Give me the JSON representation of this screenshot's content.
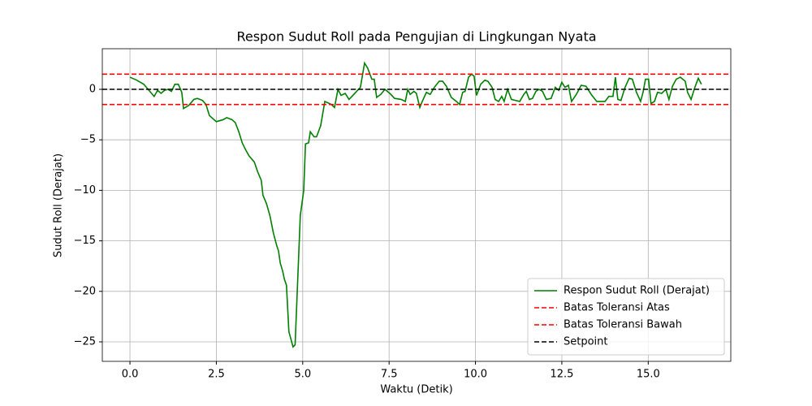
{
  "chart_data": {
    "type": "line",
    "title": "Respon Sudut Roll pada Pengujian di Lingkungan Nyata",
    "x_label": "Waktu (Detik)",
    "y_label": "Sudut Roll (Derajat)",
    "xlim": [
      -0.8,
      17.39
    ],
    "ylim": [
      -26.93,
      4.02
    ],
    "xticks": [
      {
        "value": 0,
        "label": "0.0"
      },
      {
        "value": 2.5,
        "label": "2.5"
      },
      {
        "value": 5,
        "label": "5.0"
      },
      {
        "value": 7.5,
        "label": "7.5"
      },
      {
        "value": 10,
        "label": "10.0"
      },
      {
        "value": 12.5,
        "label": "12.5"
      },
      {
        "value": 15,
        "label": "15.0"
      }
    ],
    "yticks": [
      {
        "value": -25,
        "label": "−25"
      },
      {
        "value": -20,
        "label": "−20"
      },
      {
        "value": -15,
        "label": "−15"
      },
      {
        "value": -10,
        "label": "−10"
      },
      {
        "value": -5,
        "label": "−5"
      },
      0
    ],
    "grid": true,
    "legend": "lower right",
    "series": [
      {
        "name": "Respon Sudut Roll (Derajat)",
        "color": "#008000",
        "x": [
          0,
          0.2,
          0.4,
          0.6,
          0.7,
          0.8,
          0.9,
          1.0,
          1.1,
          1.2,
          1.3,
          1.4,
          1.5,
          1.55,
          1.7,
          1.85,
          1.95,
          2.1,
          2.2,
          2.3,
          2.5,
          2.7,
          2.8,
          2.95,
          3.05,
          3.15,
          3.25,
          3.35,
          3.45,
          3.6,
          3.7,
          3.8,
          3.85,
          3.95,
          4.05,
          4.15,
          4.25,
          4.3,
          4.35,
          4.42,
          4.47,
          4.53,
          4.6,
          4.72,
          4.78,
          4.93,
          5.03,
          5.08,
          5.17,
          5.22,
          5.33,
          5.4,
          5.52,
          5.64,
          5.83,
          5.92,
          6.02,
          6.11,
          6.23,
          6.34,
          6.48,
          6.67,
          6.79,
          6.88,
          7.0,
          7.07,
          7.14,
          7.26,
          7.38,
          7.52,
          7.66,
          7.85,
          7.97,
          8.04,
          8.11,
          8.22,
          8.29,
          8.39,
          8.46,
          8.58,
          8.69,
          8.81,
          8.95,
          9.05,
          9.16,
          9.3,
          9.45,
          9.54,
          9.63,
          9.7,
          9.8,
          9.89,
          9.96,
          10.03,
          10.15,
          10.27,
          10.36,
          10.48,
          10.57,
          10.67,
          10.76,
          10.83,
          10.93,
          11.04,
          11.28,
          11.4,
          11.47,
          11.56,
          11.65,
          11.75,
          11.84,
          11.94,
          12.05,
          12.19,
          12.31,
          12.41,
          12.5,
          12.59,
          12.69,
          12.78,
          12.92,
          13.06,
          13.2,
          13.35,
          13.51,
          13.75,
          13.86,
          13.98,
          14.05,
          14.12,
          14.21,
          14.33,
          14.45,
          14.54,
          14.66,
          14.78,
          14.85,
          14.92,
          15.01,
          15.08,
          15.18,
          15.27,
          15.39,
          15.51,
          15.6,
          15.7,
          15.81,
          15.93,
          16.07,
          16.14,
          16.24,
          16.35,
          16.45,
          16.54
        ],
        "values": [
          1.2,
          0.9,
          0.5,
          -0.3,
          -0.7,
          -0.1,
          -0.4,
          -0.1,
          0.0,
          -0.2,
          0.5,
          0.5,
          -0.3,
          -1.9,
          -1.6,
          -1.0,
          -0.9,
          -1.1,
          -1.5,
          -2.6,
          -3.2,
          -3.0,
          -2.8,
          -3.0,
          -3.3,
          -4.2,
          -5.3,
          -6.0,
          -6.6,
          -7.2,
          -8.2,
          -9.0,
          -10.5,
          -11.3,
          -12.5,
          -14.2,
          -15.5,
          -16.0,
          -17.2,
          -18.0,
          -18.8,
          -19.4,
          -24.0,
          -25.5,
          -25.3,
          -12.5,
          -10.0,
          -5.4,
          -5.3,
          -4.2,
          -4.7,
          -4.7,
          -3.6,
          -1.2,
          -1.5,
          -1.8,
          0.0,
          -0.6,
          -0.4,
          -1.0,
          -0.5,
          0.2,
          2.6,
          2.1,
          1.0,
          1.0,
          -0.8,
          -0.5,
          0.0,
          -0.4,
          -0.9,
          -1.0,
          -1.2,
          0.0,
          -0.5,
          -0.2,
          -0.4,
          -1.8,
          -1.2,
          -0.3,
          -0.5,
          0.2,
          0.8,
          0.8,
          0.3,
          -0.8,
          -1.2,
          -1.5,
          -0.3,
          -0.2,
          1.2,
          1.5,
          1.3,
          -0.6,
          0.5,
          0.9,
          0.8,
          0.2,
          -1.0,
          -1.2,
          -0.7,
          -1.2,
          0.0,
          -1.0,
          -1.2,
          -0.5,
          -0.2,
          -1.0,
          -0.9,
          -0.2,
          0.0,
          -0.2,
          -1.0,
          -0.9,
          0.2,
          -0.1,
          0.7,
          0.2,
          0.4,
          -1.2,
          -0.5,
          0.4,
          0.3,
          -0.5,
          -1.2,
          -1.2,
          -0.7,
          -0.7,
          1.2,
          -1.0,
          -1.1,
          0.2,
          1.1,
          1.0,
          -0.3,
          -1.2,
          -0.3,
          1.0,
          1.0,
          -1.4,
          -1.2,
          -0.3,
          -0.4,
          0.0,
          -1.0,
          0.3,
          1.0,
          1.2,
          0.8,
          -0.3,
          -1.0,
          0.2,
          1.1,
          0.5
        ]
      }
    ],
    "hlines": [
      {
        "name": "Batas Toleransi Atas",
        "color": "#ff0000",
        "value": 1.5
      },
      {
        "name": "Batas Toleransi Bawah",
        "color": "#ff0000",
        "value": -1.5
      },
      {
        "name": "Setpoint",
        "color": "#000000",
        "value": 0
      }
    ]
  }
}
